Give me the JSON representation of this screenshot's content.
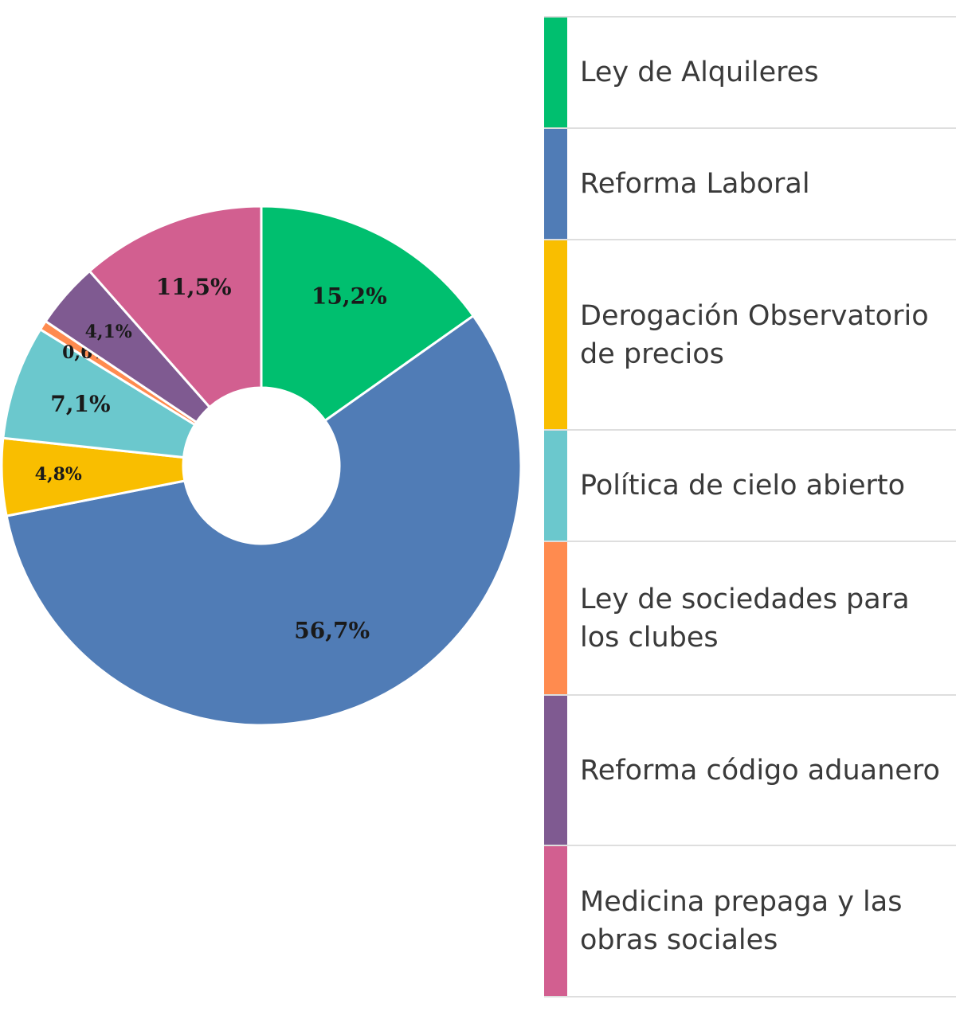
{
  "chart_data": {
    "type": "pie",
    "donut": true,
    "legend": "right",
    "categories": [
      "Ley de Alquileres",
      "Reforma Laboral",
      "Derogación Observatorio de precios",
      "Política de cielo abierto",
      "Ley de sociedades para los clubes",
      "Reforma código aduanero",
      "Medicina prepaga y las obras sociales"
    ],
    "values": [
      15.2,
      56.7,
      4.8,
      7.1,
      0.6,
      4.1,
      11.5
    ],
    "value_labels": [
      "15,2%",
      "56,7%",
      "4,8%",
      "7,1%",
      "0,6%",
      "4,1%",
      "11,5%"
    ],
    "colors": [
      "#00bf6f",
      "#507cb6",
      "#f9be00",
      "#6bc8cd",
      "#ff8b4f",
      "#7f5a91",
      "#d25f90"
    ]
  },
  "legend_items": [
    {
      "label": "Ley de Alquileres",
      "color": "#00bf6f"
    },
    {
      "label": "Reforma Laboral",
      "color": "#507cb6"
    },
    {
      "label": "Derogación Observatorio de precios",
      "color": "#f9be00"
    },
    {
      "label": "Política de cielo abierto",
      "color": "#6bc8cd"
    },
    {
      "label": "Ley de sociedades para los clubes",
      "color": "#ff8b4f"
    },
    {
      "label": "Reforma código aduanero",
      "color": "#7f5a91"
    },
    {
      "label": "Medicina prepaga y las obras sociales",
      "color": "#d25f90"
    }
  ]
}
